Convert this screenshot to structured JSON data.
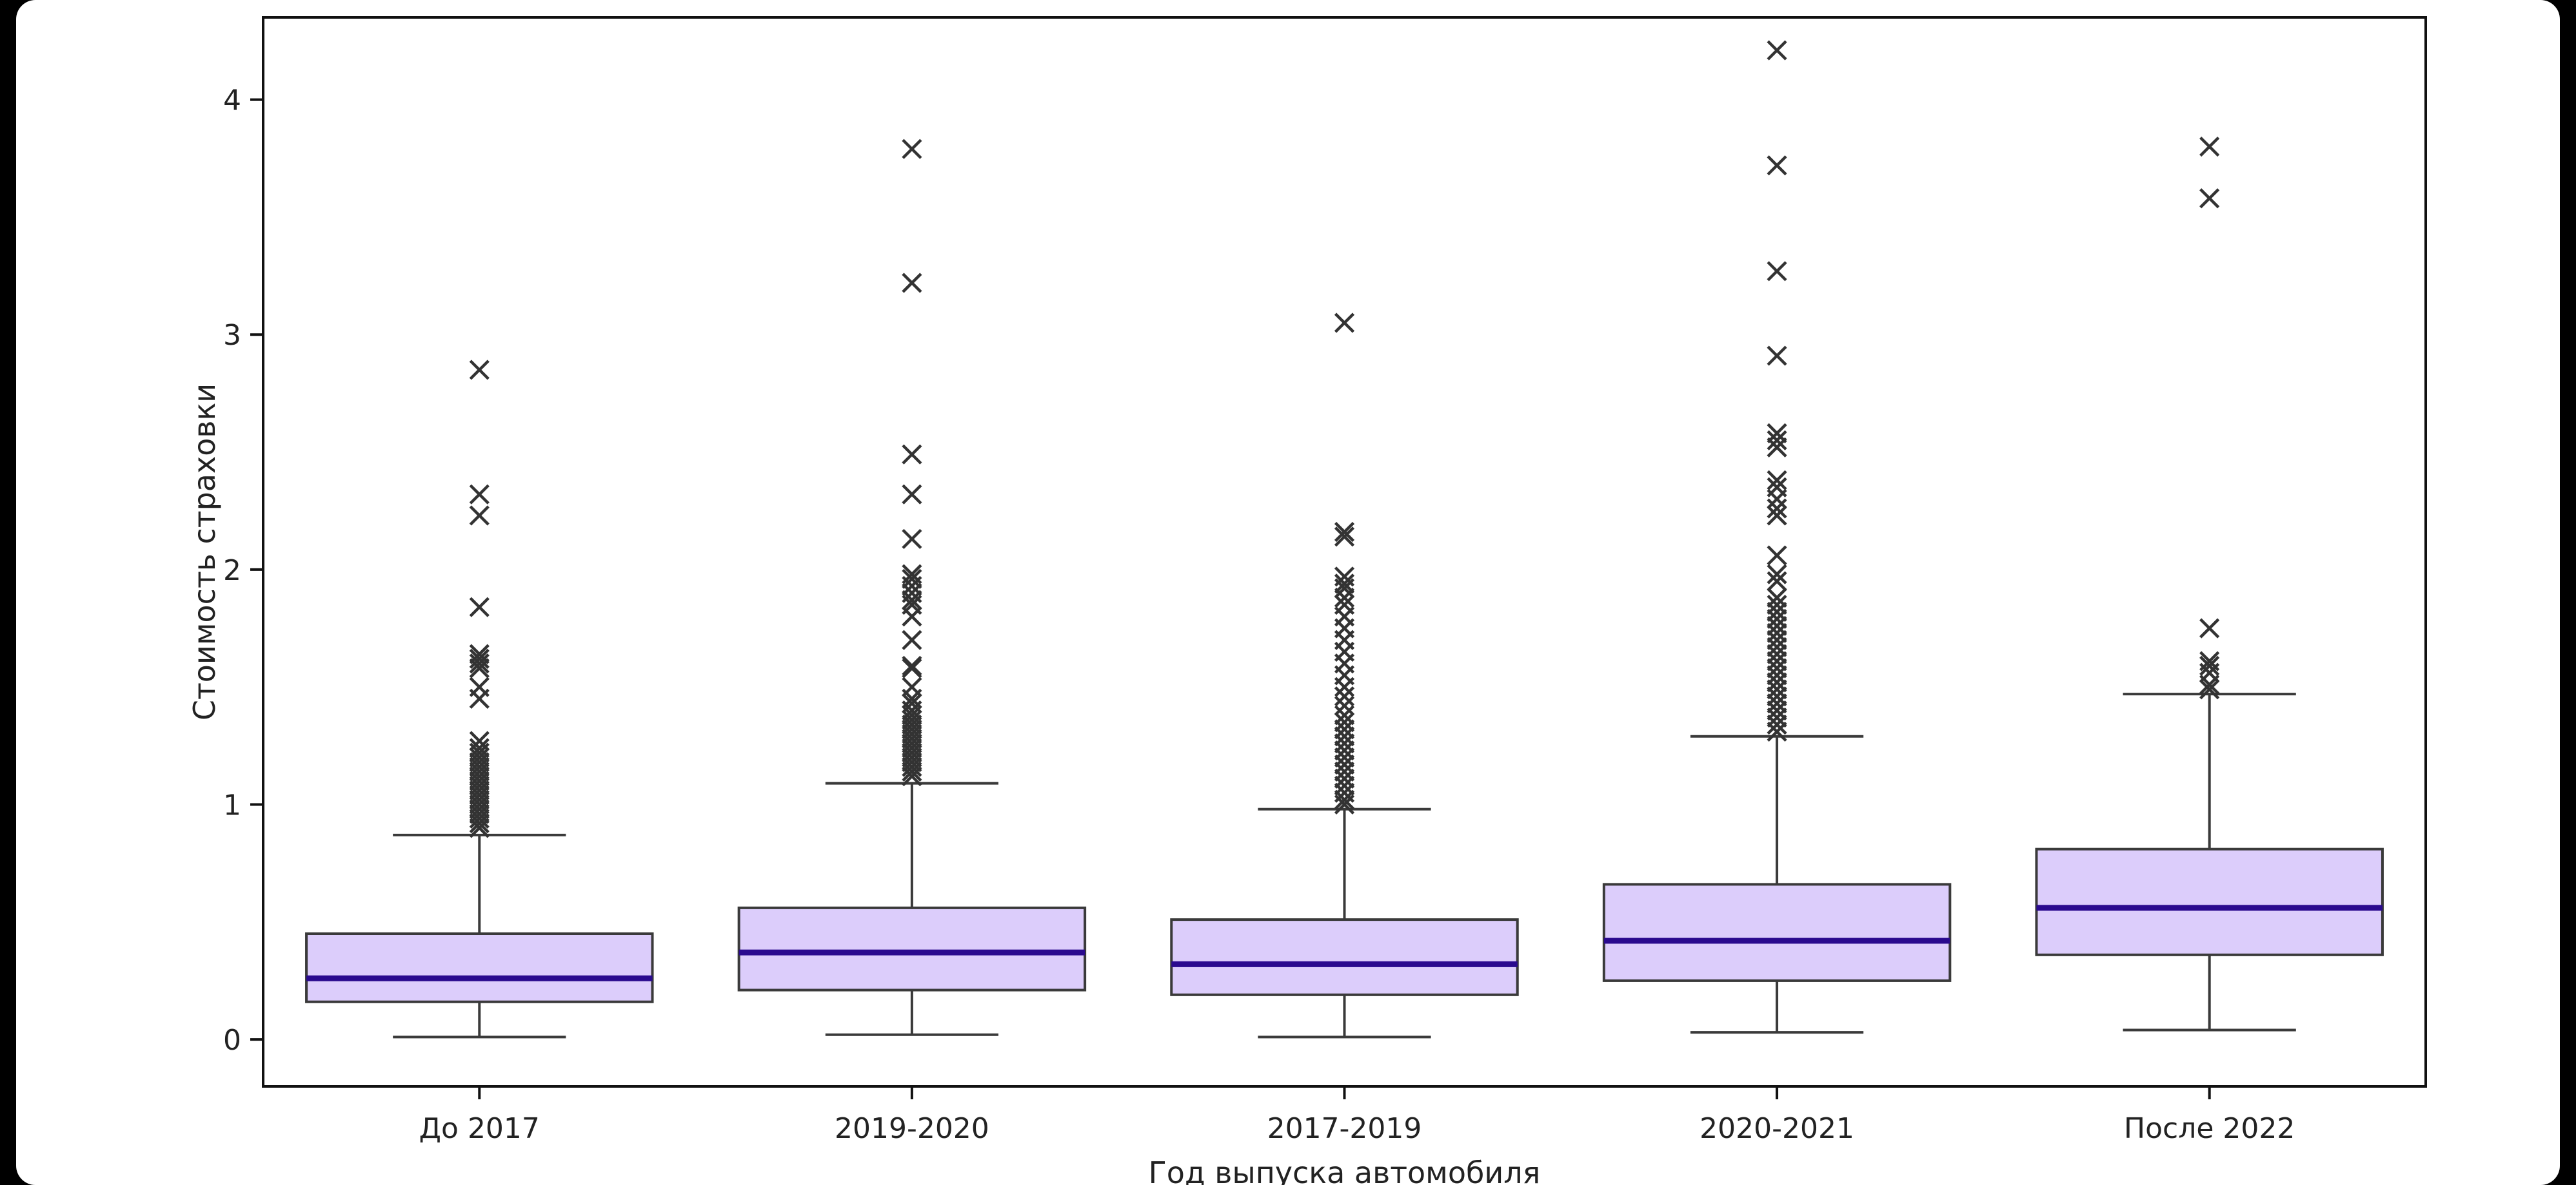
{
  "chart_data": {
    "type": "boxplot",
    "title": "",
    "xlabel": "Год выпуска автомобиля",
    "ylabel": "Стоимость страховки",
    "ylim": [
      -0.2,
      4.35
    ],
    "yticks": [
      0,
      1,
      2,
      3,
      4
    ],
    "grid": false,
    "colors": {
      "box_fill": "#dccdfb",
      "median": "#2a0a8e",
      "lines": "#3a3a3a"
    },
    "categories": [
      "До 2017",
      "2019-2020",
      "2017-2019",
      "2020-2021",
      "После 2022"
    ],
    "boxes": [
      {
        "category": "До 2017",
        "whisker_low": 0.01,
        "q1": 0.16,
        "median": 0.26,
        "q3": 0.45,
        "whisker_high": 0.87,
        "outliers": [
          2.85,
          2.32,
          2.23,
          1.84,
          1.64,
          1.62,
          1.6,
          1.58,
          1.5,
          1.45,
          1.27,
          1.24,
          1.22,
          1.2,
          1.18,
          1.16,
          1.14,
          1.12,
          1.1,
          1.08,
          1.06,
          1.04,
          1.02,
          1.0,
          0.98,
          0.96,
          0.94,
          0.92,
          0.9
        ]
      },
      {
        "category": "2019-2020",
        "whisker_low": 0.02,
        "q1": 0.21,
        "median": 0.37,
        "q3": 0.56,
        "whisker_high": 1.09,
        "outliers": [
          3.79,
          3.22,
          2.49,
          2.32,
          2.13,
          1.98,
          1.96,
          1.93,
          1.9,
          1.87,
          1.85,
          1.8,
          1.7,
          1.59,
          1.58,
          1.5,
          1.45,
          1.43,
          1.4,
          1.38,
          1.36,
          1.34,
          1.32,
          1.3,
          1.28,
          1.26,
          1.24,
          1.22,
          1.2,
          1.18,
          1.16,
          1.14,
          1.12
        ]
      },
      {
        "category": "2017-2019",
        "whisker_low": 0.01,
        "q1": 0.19,
        "median": 0.32,
        "q3": 0.51,
        "whisker_high": 0.98,
        "outliers": [
          3.05,
          2.16,
          2.14,
          1.97,
          1.94,
          1.92,
          1.88,
          1.85,
          1.8,
          1.75,
          1.7,
          1.65,
          1.6,
          1.55,
          1.5,
          1.46,
          1.42,
          1.38,
          1.35,
          1.32,
          1.29,
          1.26,
          1.23,
          1.2,
          1.17,
          1.14,
          1.11,
          1.08,
          1.05,
          1.02,
          1.0
        ]
      },
      {
        "category": "2020-2021",
        "whisker_low": 0.03,
        "q1": 0.25,
        "median": 0.42,
        "q3": 0.66,
        "whisker_high": 1.29,
        "outliers": [
          4.21,
          3.72,
          3.27,
          2.91,
          2.58,
          2.55,
          2.52,
          2.38,
          2.35,
          2.3,
          2.26,
          2.23,
          2.06,
          1.98,
          1.95,
          1.88,
          1.85,
          1.82,
          1.79,
          1.76,
          1.73,
          1.7,
          1.67,
          1.64,
          1.61,
          1.58,
          1.55,
          1.52,
          1.49,
          1.46,
          1.43,
          1.4,
          1.37,
          1.34,
          1.31
        ]
      },
      {
        "category": "После 2022",
        "whisker_low": 0.04,
        "q1": 0.36,
        "median": 0.56,
        "q3": 0.81,
        "whisker_high": 1.47,
        "outliers": [
          3.8,
          3.58,
          1.75,
          1.61,
          1.59,
          1.56,
          1.51,
          1.49
        ]
      }
    ]
  }
}
